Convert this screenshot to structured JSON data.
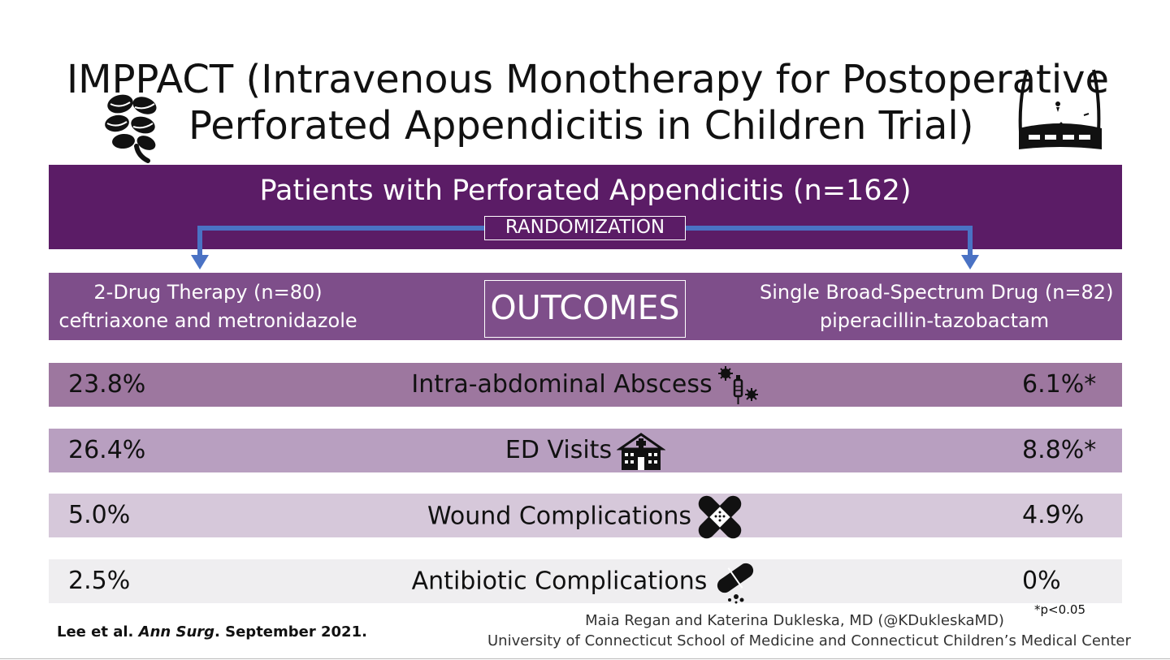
{
  "title": {
    "line1": "IMPPACT (Intravenous Monotherapy for Postoperative",
    "line2": "Perforated Appendicitis in Children Trial)"
  },
  "population": "Patients with Perforated Appendicitis (n=162)",
  "randomization": "RANDOMIZATION",
  "arms": {
    "left": {
      "name": "2-Drug Therapy (n=80)",
      "drugs": "ceftriaxone and metronidazole"
    },
    "right": {
      "name": "Single Broad-Spectrum Drug (n=82)",
      "drugs": "piperacillin-tazobactam"
    }
  },
  "outcomes_label": "OUTCOMES",
  "rows": [
    {
      "label": "Intra-abdominal Abscess",
      "left": "23.8%",
      "right": "6.1%*",
      "color": "#9d779f",
      "icon": "abscess-icon"
    },
    {
      "label": "ED Visits",
      "left": "26.4%",
      "right": "8.8%*",
      "color": "#b89fc0",
      "icon": "hospital-icon"
    },
    {
      "label": "Wound Complications",
      "left": "5.0%",
      "right": "4.9%",
      "color": "#d6c8da",
      "icon": "bandage-icon"
    },
    {
      "label": "Antibiotic Complications",
      "left": "2.5%",
      "right": "0%",
      "color": "#efeef0",
      "icon": "pill-icon"
    }
  ],
  "footnote": "*p<0.05",
  "citation": {
    "authors": "Lee et al. ",
    "journal": "Ann Surg",
    "date": ". September 2021."
  },
  "credits": {
    "line1": "Maia Regan and Katerina Dukleska, MD (@KDukleskaMD)",
    "line2": "University of Connecticut School of Medicine and Connecticut Children’s Medical Center"
  },
  "colors": {
    "band_dark": "#5b1c66",
    "band_arms": "#7e4e8a",
    "arrow": "#4a72c4"
  }
}
